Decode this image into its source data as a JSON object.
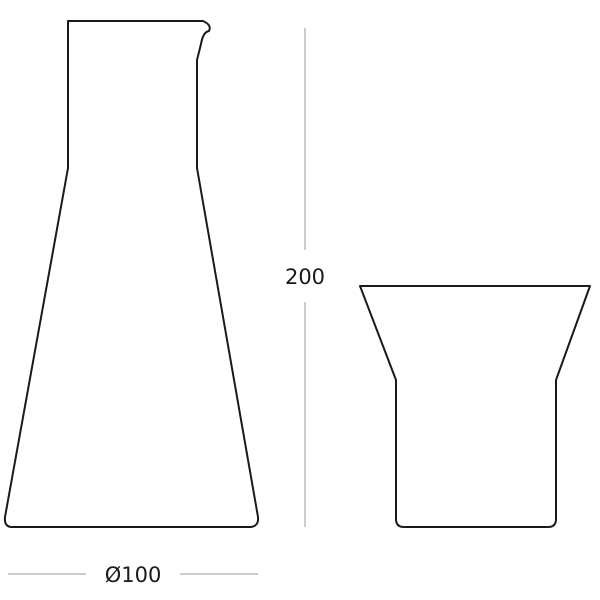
{
  "dimensions": {
    "height_label": "200",
    "diameter_label": "Ø100"
  },
  "colors": {
    "outline": "#1a1a1a",
    "dimension_line": "#9a9a9a",
    "background": "#ffffff"
  }
}
